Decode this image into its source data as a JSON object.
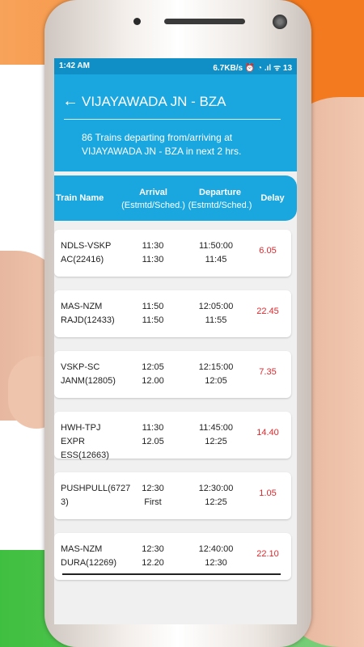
{
  "status_bar": {
    "time": "1:42 AM",
    "right": "6.7KB/s ⏰ ◔ .ıl ᯤ 13"
  },
  "header": {
    "back_icon": "arrow-left-icon",
    "title": "VIJAYAWADA JN - BZA",
    "subtitle": "86 Trains departing from/arriving at VIJAYAWADA JN - BZA in next 2 hrs."
  },
  "table": {
    "columns": {
      "train_name": "Train Name",
      "arrival": "Arrival",
      "arrival_sub": "(Estmtd/Sched.)",
      "departure": "Departure",
      "departure_sub": "(Estmtd/Sched.)",
      "delay": "Delay"
    },
    "rows": [
      {
        "name_l1": "NDLS-VSKP",
        "name_l2": "AC(22416)",
        "arr_est": "11:30",
        "arr_sched": "11:30",
        "dep_est": "11:50:00",
        "dep_sched": "11:45",
        "delay": "6.05"
      },
      {
        "name_l1": "MAS-NZM",
        "name_l2": "RAJD(12433)",
        "arr_est": "11:50",
        "arr_sched": "11:50",
        "dep_est": "12:05:00",
        "dep_sched": "11:55",
        "delay": "22.45"
      },
      {
        "name_l1": "VSKP-SC",
        "name_l2": "JANM(12805)",
        "arr_est": "12:05",
        "arr_sched": "12.00",
        "dep_est": "12:15:00",
        "dep_sched": "12:05",
        "delay": "7.35"
      },
      {
        "name_l1": "HWH-TPJ  EXPR",
        "name_l2": "ESS(12663)",
        "arr_est": "11:30",
        "arr_sched": "12.05",
        "dep_est": "11:45:00",
        "dep_sched": "12:25",
        "delay": "14.40"
      },
      {
        "name_l1": "PUSHPULL(6727",
        "name_l2": "3)",
        "arr_est": "12:30",
        "arr_sched": "First",
        "dep_est": "12:30:00",
        "dep_sched": "12:25",
        "delay": "1.05"
      },
      {
        "name_l1": "MAS-NZM",
        "name_l2": "DURA(12269)",
        "arr_est": "12:30",
        "arr_sched": "12.20",
        "dep_est": "12:40:00",
        "dep_sched": "12:30",
        "delay": "22.10"
      }
    ]
  },
  "colors": {
    "primary": "#1aa6de",
    "status_bar": "#0f8fc6",
    "delay_text": "#e0282c"
  }
}
